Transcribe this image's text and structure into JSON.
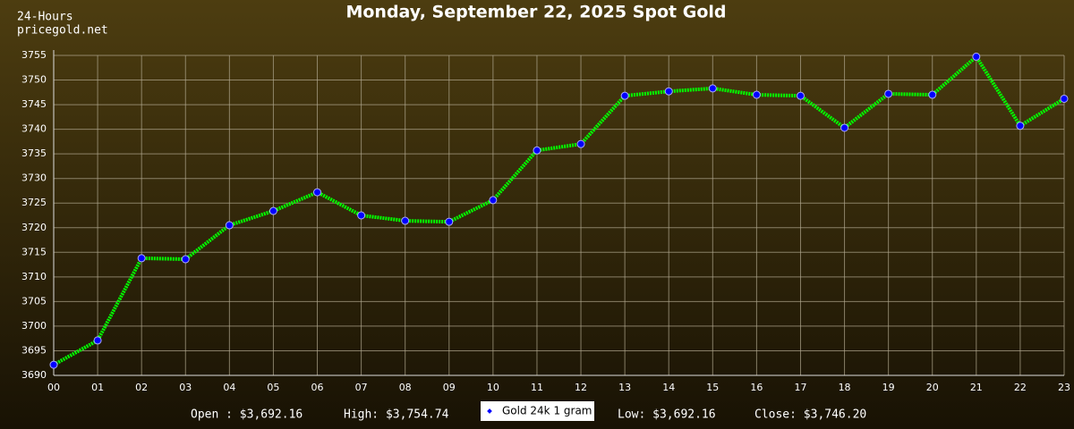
{
  "chart_data": {
    "type": "line",
    "title": "Monday, September 22, 2025 Spot Gold",
    "corner_text": [
      "24-Hours",
      "pricegold.net"
    ],
    "categories": [
      "00",
      "01",
      "02",
      "03",
      "04",
      "05",
      "06",
      "07",
      "08",
      "09",
      "10",
      "11",
      "12",
      "13",
      "14",
      "15",
      "16",
      "17",
      "18",
      "19",
      "20",
      "21",
      "22",
      "23"
    ],
    "series": [
      {
        "name": "Gold 24k 1 gram",
        "color": "#00ff00",
        "marker_color": "#0000ff",
        "values": [
          3692.16,
          3697.1,
          3713.8,
          3713.6,
          3720.5,
          3723.4,
          3727.2,
          3722.5,
          3721.4,
          3721.2,
          3725.6,
          3735.7,
          3737.0,
          3746.8,
          3747.7,
          3748.3,
          3747.0,
          3746.8,
          3740.3,
          3747.2,
          3747.0,
          3754.74,
          3740.7,
          3746.2
        ]
      }
    ],
    "ylim": [
      3690,
      3755
    ],
    "yticks": [
      3690,
      3695,
      3700,
      3705,
      3710,
      3715,
      3720,
      3725,
      3730,
      3735,
      3740,
      3745,
      3750,
      3755
    ],
    "grid": true,
    "summary_left": [
      "Open : $3,692.16",
      "High: $3,754.74"
    ],
    "summary_right": [
      "Low: $3,692.16",
      "Close: $3,746.20"
    ]
  }
}
